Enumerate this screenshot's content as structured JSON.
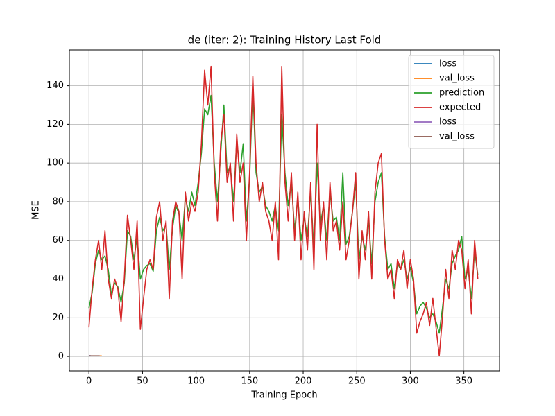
{
  "chart_data": {
    "type": "line",
    "title": "de (iter: 2): Training History Last Fold",
    "x_label": "Training Epoch",
    "y_label": "MSE",
    "xlim": [
      -18.25,
      383.25
    ],
    "ylim": [
      -7.5,
      158.5
    ],
    "xticks": [
      0,
      50,
      100,
      150,
      200,
      250,
      300,
      350
    ],
    "yticks": [
      0,
      20,
      40,
      60,
      80,
      100,
      120,
      140
    ],
    "grid": true,
    "legend": "upper right",
    "series": [
      {
        "name": "loss",
        "color": "#1f77b4",
        "x": [
          0,
          2,
          4,
          6,
          8,
          10
        ],
        "values": [
          0.4,
          0.3,
          0.3,
          0.3,
          0.3,
          0.3
        ]
      },
      {
        "name": "val_loss",
        "color": "#ff7f0e",
        "x": [
          0,
          2,
          4,
          6,
          8,
          10,
          12
        ],
        "values": [
          0.3,
          0.3,
          0.3,
          0.3,
          0.3,
          0.3,
          0.3
        ]
      },
      {
        "name": "prediction",
        "color": "#2ca02c",
        "x": [
          0,
          3,
          6,
          9,
          12,
          15,
          18,
          21,
          24,
          27,
          30,
          33,
          36,
          39,
          42,
          45,
          48,
          51,
          54,
          57,
          60,
          63,
          66,
          69,
          72,
          75,
          78,
          81,
          84,
          87,
          90,
          93,
          96,
          99,
          102,
          105,
          108,
          111,
          114,
          117,
          120,
          123,
          126,
          129,
          132,
          135,
          138,
          141,
          144,
          147,
          150,
          153,
          156,
          159,
          162,
          165,
          168,
          171,
          174,
          177,
          180,
          183,
          186,
          189,
          192,
          195,
          198,
          201,
          204,
          207,
          210,
          213,
          216,
          219,
          222,
          225,
          228,
          231,
          234,
          237,
          240,
          243,
          246,
          249,
          252,
          255,
          258,
          261,
          264,
          267,
          270,
          273,
          276,
          279,
          282,
          285,
          288,
          291,
          294,
          297,
          300,
          303,
          306,
          309,
          312,
          315,
          318,
          321,
          324,
          327,
          330,
          333,
          336,
          339,
          342,
          345,
          348,
          351,
          354,
          357,
          360,
          363
        ],
        "values": [
          25,
          33,
          48,
          55,
          50,
          52,
          45,
          32,
          38,
          36,
          28,
          38,
          65,
          62,
          50,
          62,
          40,
          45,
          47,
          48,
          44,
          65,
          72,
          65,
          68,
          45,
          66,
          78,
          74,
          60,
          82,
          75,
          85,
          78,
          90,
          105,
          128,
          125,
          135,
          100,
          80,
          105,
          130,
          95,
          98,
          80,
          112,
          95,
          110,
          70,
          92,
          140,
          95,
          85,
          88,
          78,
          75,
          70,
          78,
          65,
          125,
          95,
          78,
          90,
          65,
          82,
          60,
          72,
          62,
          85,
          55,
          100,
          68,
          78,
          60,
          85,
          70,
          72,
          60,
          95,
          58,
          62,
          75,
          90,
          50,
          62,
          55,
          70,
          48,
          80,
          90,
          95,
          62,
          45,
          48,
          35,
          48,
          45,
          50,
          40,
          46,
          38,
          22,
          26,
          28,
          25,
          20,
          22,
          18,
          12,
          25,
          40,
          35,
          48,
          52,
          55,
          62,
          40,
          45,
          30,
          55,
          42
        ]
      },
      {
        "name": "expected",
        "color": "#d62728",
        "x": [
          0,
          3,
          6,
          9,
          12,
          15,
          18,
          21,
          24,
          27,
          30,
          33,
          36,
          39,
          42,
          45,
          48,
          51,
          54,
          57,
          60,
          63,
          66,
          69,
          72,
          75,
          78,
          81,
          84,
          87,
          90,
          93,
          96,
          99,
          102,
          105,
          108,
          111,
          114,
          117,
          120,
          123,
          126,
          129,
          132,
          135,
          138,
          141,
          144,
          147,
          150,
          153,
          156,
          159,
          162,
          165,
          168,
          171,
          174,
          177,
          180,
          183,
          186,
          189,
          192,
          195,
          198,
          201,
          204,
          207,
          210,
          213,
          216,
          219,
          222,
          225,
          228,
          231,
          234,
          237,
          240,
          243,
          246,
          249,
          252,
          255,
          258,
          261,
          264,
          267,
          270,
          273,
          276,
          279,
          282,
          285,
          288,
          291,
          294,
          297,
          300,
          303,
          306,
          309,
          312,
          315,
          318,
          321,
          324,
          327,
          330,
          333,
          336,
          339,
          342,
          345,
          348,
          351,
          354,
          357,
          360,
          363
        ],
        "values": [
          15,
          35,
          50,
          60,
          45,
          65,
          40,
          30,
          40,
          35,
          18,
          40,
          73,
          60,
          45,
          70,
          14,
          30,
          45,
          50,
          45,
          72,
          80,
          60,
          70,
          30,
          70,
          80,
          75,
          40,
          85,
          70,
          80,
          75,
          85,
          110,
          148,
          130,
          150,
          95,
          70,
          110,
          125,
          90,
          100,
          70,
          115,
          90,
          100,
          60,
          95,
          145,
          100,
          80,
          90,
          75,
          70,
          60,
          80,
          50,
          150,
          90,
          70,
          95,
          60,
          85,
          50,
          75,
          55,
          90,
          45,
          120,
          60,
          80,
          50,
          90,
          65,
          70,
          55,
          80,
          50,
          60,
          75,
          95,
          40,
          65,
          50,
          75,
          40,
          85,
          100,
          105,
          60,
          40,
          45,
          30,
          50,
          45,
          55,
          35,
          50,
          40,
          12,
          18,
          22,
          28,
          16,
          30,
          15,
          0.3,
          20,
          45,
          30,
          55,
          45,
          60,
          55,
          35,
          50,
          22,
          60,
          40
        ]
      },
      {
        "name": "loss",
        "color": "#9467bd",
        "x": [
          0,
          2,
          4,
          6,
          8,
          10
        ],
        "values": [
          0.4,
          0.3,
          0.3,
          0.3,
          0.3,
          0.3
        ]
      },
      {
        "name": "val_loss",
        "color": "#8c564b",
        "x": [
          0,
          2,
          4,
          6,
          8,
          10
        ],
        "values": [
          0.3,
          0.3,
          0.3,
          0.3,
          0.3,
          0.3
        ]
      }
    ]
  }
}
